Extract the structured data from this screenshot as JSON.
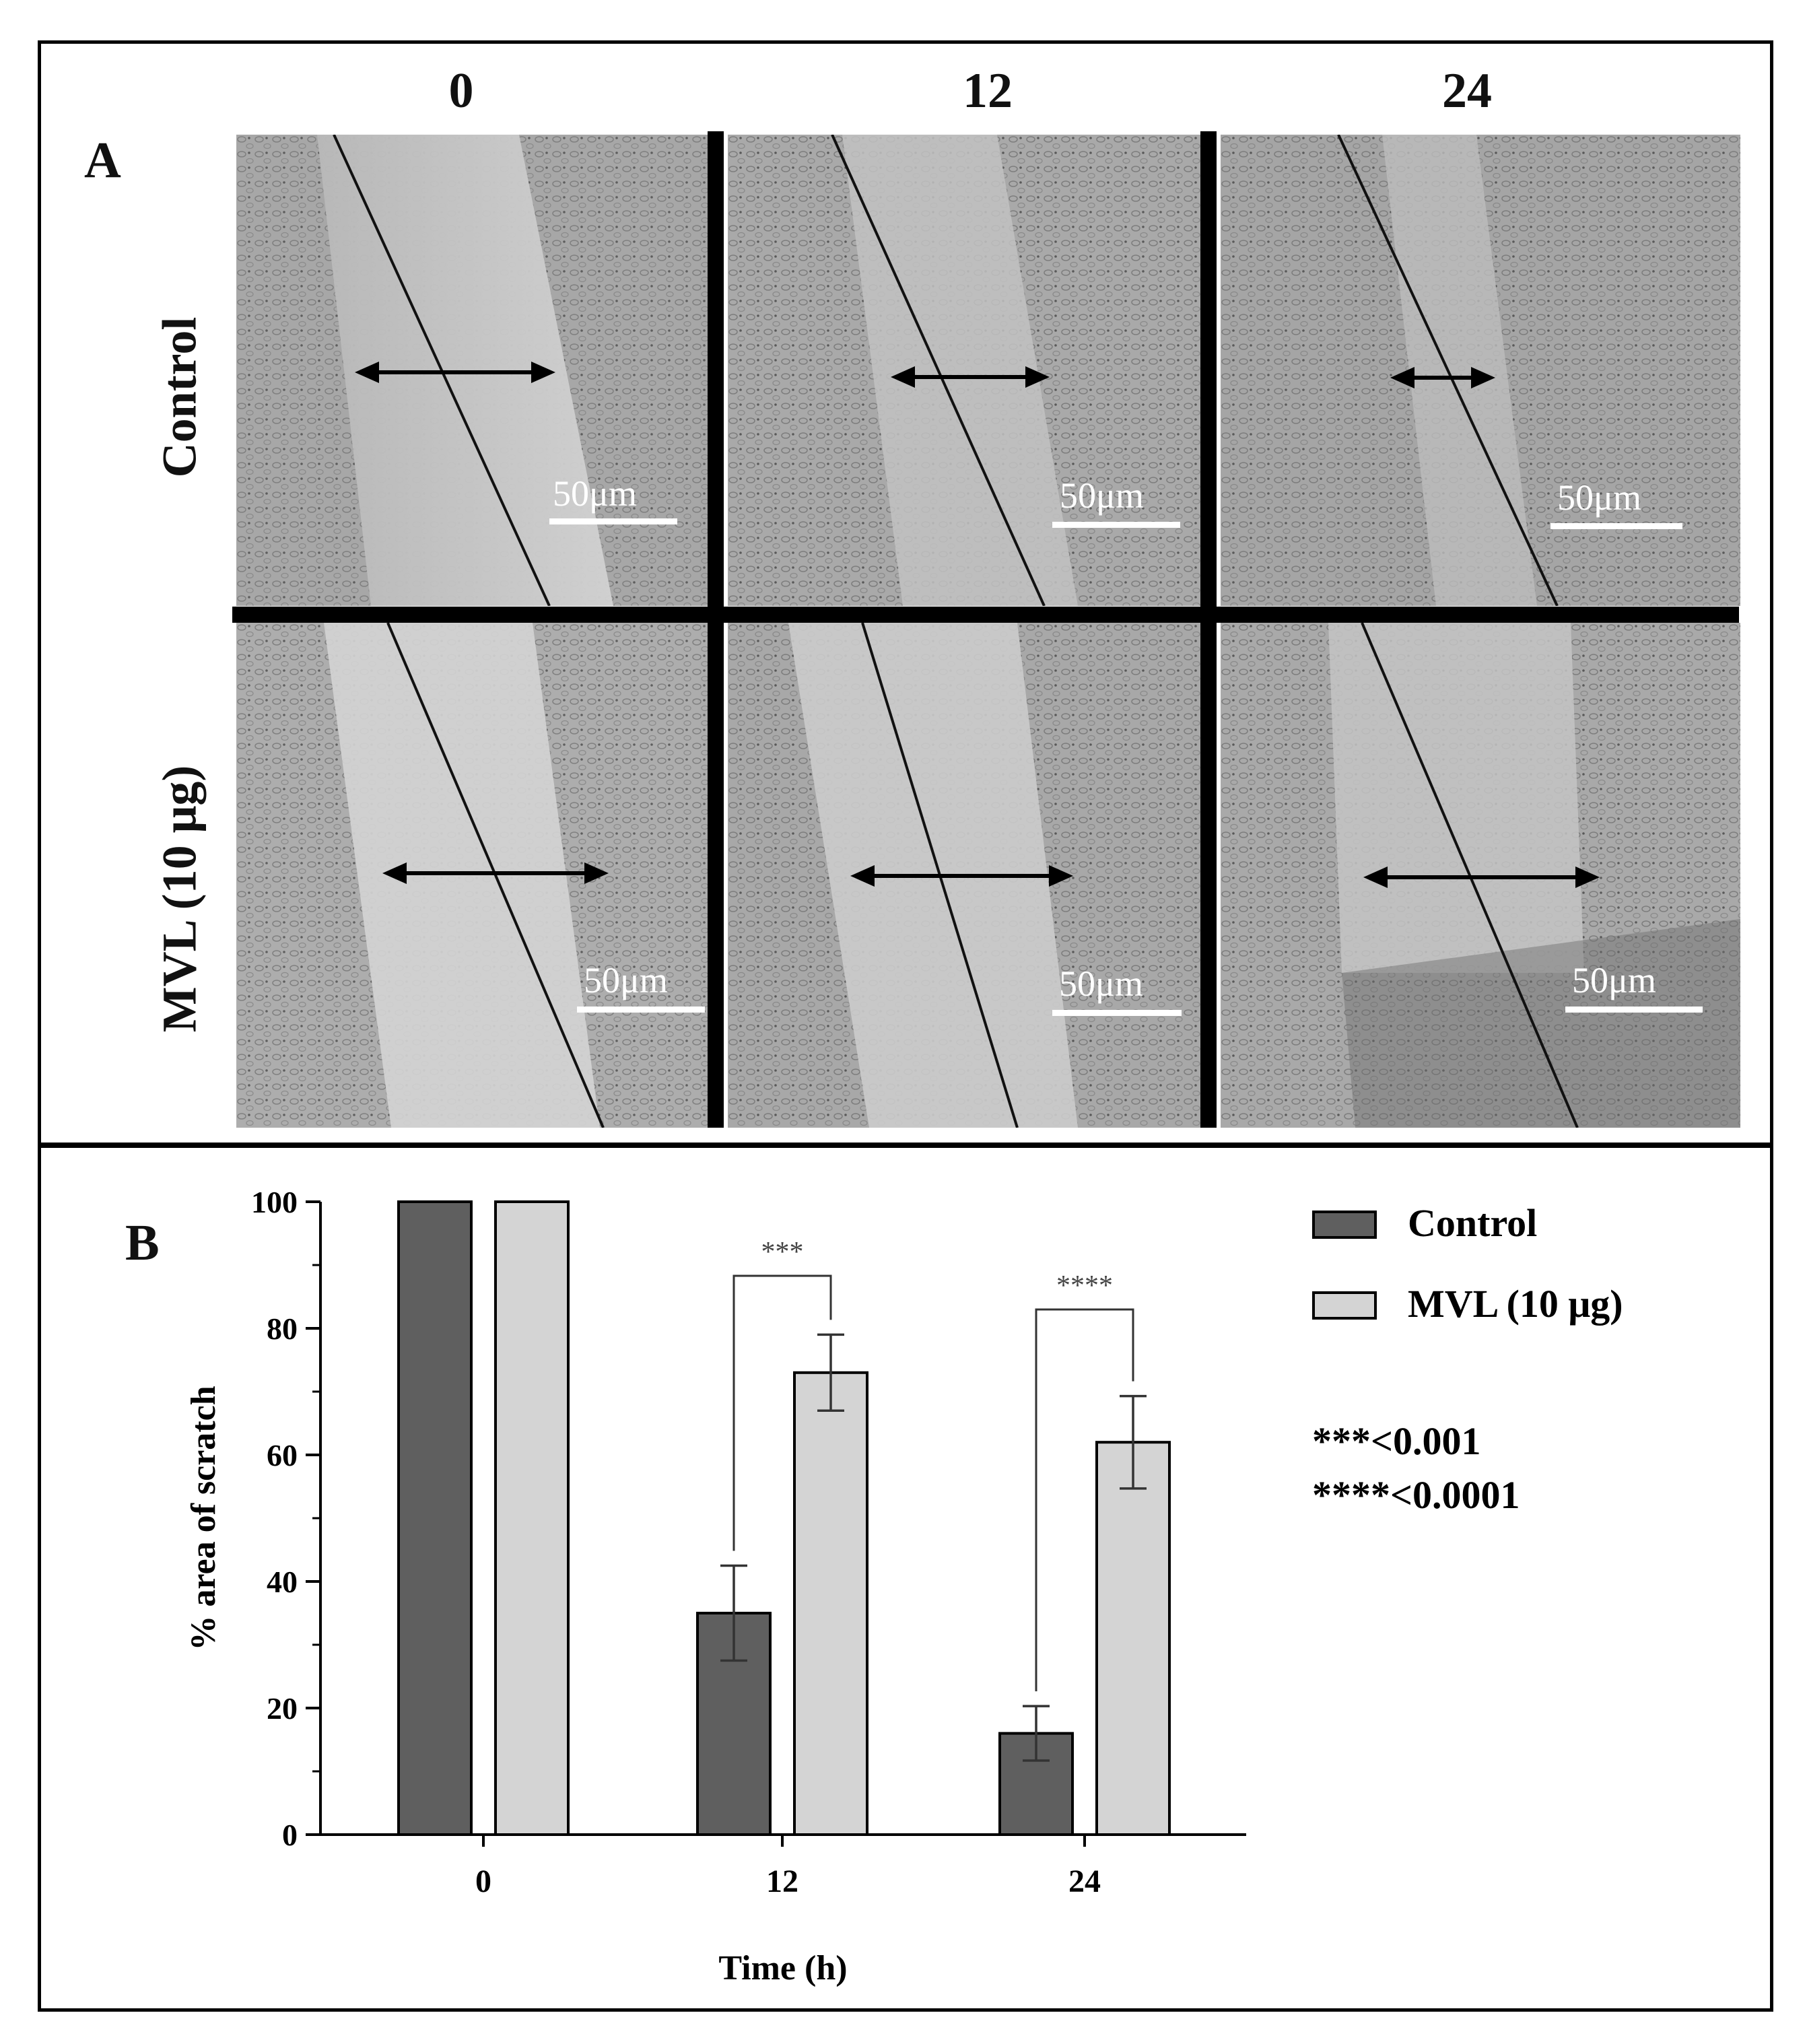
{
  "panel_a": {
    "label": "A",
    "columns": [
      "0",
      "12",
      "24"
    ],
    "rows": [
      "Control",
      "MVL (10 μg)"
    ],
    "scale_label": "50μm"
  },
  "panel_b": {
    "label": "B"
  },
  "chart_data": {
    "type": "bar",
    "categories": [
      "0",
      "12",
      "24"
    ],
    "series": [
      {
        "name": "Control",
        "values": [
          100,
          35,
          16
        ],
        "errors": [
          0,
          7.5,
          4.3
        ],
        "color": "#5f5f5f"
      },
      {
        "name": "MVL (10 μg)",
        "values": [
          100,
          73,
          62
        ],
        "errors": [
          0,
          6,
          7.3
        ],
        "color": "#d4d4d4"
      }
    ],
    "xlabel": "Time (h)",
    "ylabel": "% area of scratch",
    "ylim": [
      0,
      100
    ],
    "yticks": [
      0,
      20,
      40,
      60,
      80,
      100
    ],
    "significance": [
      {
        "category": "12",
        "label": "***"
      },
      {
        "category": "24",
        "label": "****"
      }
    ],
    "annotations": [
      "***<0.001",
      "****<0.0001"
    ],
    "legend_position": "right"
  }
}
